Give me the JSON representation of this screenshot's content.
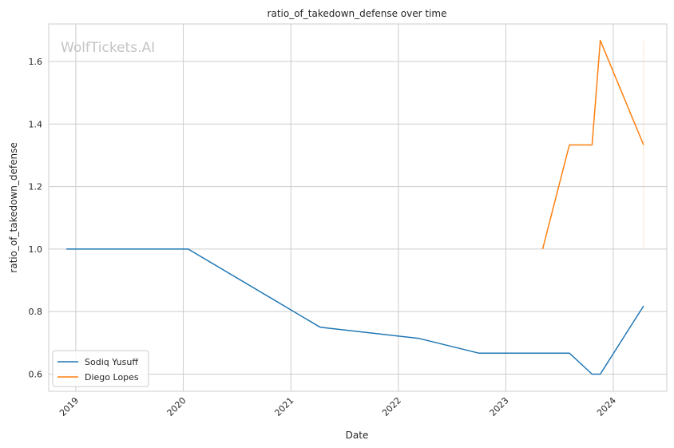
{
  "watermark": "WolfTickets.AI",
  "chart_data": {
    "type": "line",
    "title": "ratio_of_takedown_defense over time",
    "xlabel": "Date",
    "ylabel": "ratio_of_takedown_defense",
    "xlim": [
      "2018-10-01",
      "2024-07-01"
    ],
    "ylim": [
      0.545,
      1.72
    ],
    "x_ticks": [
      "2019-01-01",
      "2020-01-01",
      "2021-01-01",
      "2022-01-01",
      "2023-01-01",
      "2024-01-01"
    ],
    "x_tick_labels": [
      "2019",
      "2020",
      "2021",
      "2022",
      "2023",
      "2024"
    ],
    "y_ticks": [
      0.6,
      0.8,
      1.0,
      1.2,
      1.4,
      1.6
    ],
    "y_tick_labels": [
      "0.6",
      "0.8",
      "1.0",
      "1.2",
      "1.4",
      "1.6"
    ],
    "grid": true,
    "legend_position": "lower-left",
    "series": [
      {
        "name": "Sodiq Yusuff",
        "color": "#1f77b4",
        "x": [
          "2018-11-30",
          "2020-01-18",
          "2021-04-10",
          "2022-03-12",
          "2022-10-01",
          "2023-08-05",
          "2023-10-21",
          "2023-11-18",
          "2024-04-13"
        ],
        "y": [
          1.0,
          1.0,
          0.75,
          0.714,
          0.667,
          0.667,
          0.6,
          0.6,
          0.818
        ]
      },
      {
        "name": "Diego Lopes",
        "color": "#ff7f0e",
        "x": [
          "2023-05-06",
          "2023-08-05",
          "2023-10-21",
          "2023-11-18",
          "2024-04-13"
        ],
        "y": [
          1.0,
          1.333,
          1.333,
          1.667,
          1.333
        ]
      }
    ]
  }
}
